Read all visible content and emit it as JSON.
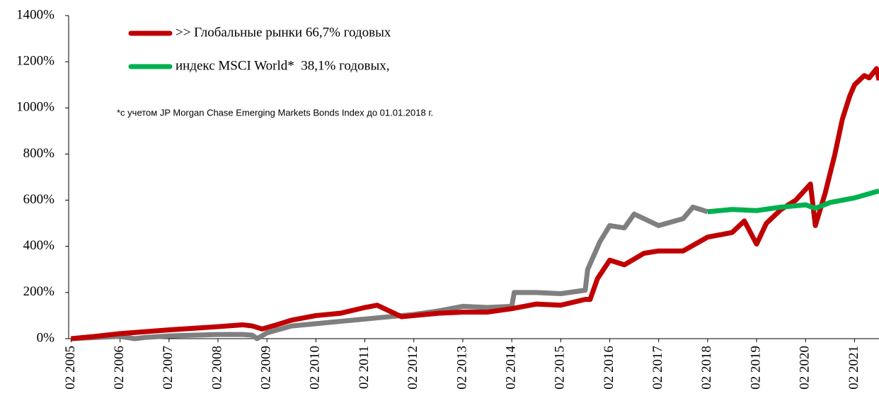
{
  "chart_data": {
    "type": "line",
    "annotation": "*с учетом JP Morgan Chase Emerging Markets Bonds Index до 01.01.2018 г.",
    "xlim": [
      2004.95,
      2021.5
    ],
    "xticks": [
      {
        "value": 2005,
        "label": "02 2005"
      },
      {
        "value": 2006,
        "label": "02 2006"
      },
      {
        "value": 2007,
        "label": "02 2007"
      },
      {
        "value": 2008,
        "label": "02 2008"
      },
      {
        "value": 2009,
        "label": "02 2009"
      },
      {
        "value": 2010,
        "label": "02 2010"
      },
      {
        "value": 2011,
        "label": "02 2011"
      },
      {
        "value": 2012,
        "label": "02 2012"
      },
      {
        "value": 2013,
        "label": "02 2013"
      },
      {
        "value": 2014,
        "label": "02 2014"
      },
      {
        "value": 2015,
        "label": "02 2015"
      },
      {
        "value": 2016,
        "label": "02 2016"
      },
      {
        "value": 2017,
        "label": "02 2017"
      },
      {
        "value": 2018,
        "label": "02 2018"
      },
      {
        "value": 2019,
        "label": "02 2019"
      },
      {
        "value": 2020,
        "label": "02 2020"
      },
      {
        "value": 2021,
        "label": "02 2021"
      }
    ],
    "ylim": [
      0,
      1400
    ],
    "yticks": [
      {
        "value": 0,
        "label": "0%"
      },
      {
        "value": 200,
        "label": "200%"
      },
      {
        "value": 400,
        "label": "400%"
      },
      {
        "value": 600,
        "label": "600%"
      },
      {
        "value": 800,
        "label": "800%"
      },
      {
        "value": 1000,
        "label": "1000%"
      },
      {
        "value": 1200,
        "label": "1200%"
      },
      {
        "value": 1400,
        "label": "1400%"
      }
    ],
    "series": [
      {
        "color": "#7f7f7f",
        "x": [
          2005,
          2005.5,
          2006,
          2006.3,
          2006.5,
          2007,
          2007.5,
          2008,
          2008.5,
          2008.7,
          2008.8,
          2009,
          2009.5,
          2010,
          2010.5,
          2011,
          2011.5,
          2012,
          2012.5,
          2013,
          2013.5,
          2014,
          2014.05,
          2014.5,
          2015,
          2015.5,
          2015.55,
          2015.8,
          2016,
          2016.3,
          2016.5,
          2017,
          2017.5,
          2017.7,
          2018
        ],
        "values": [
          0,
          5,
          10,
          0,
          5,
          12,
          15,
          18,
          18,
          15,
          0,
          25,
          55,
          65,
          75,
          85,
          95,
          105,
          120,
          140,
          135,
          140,
          200,
          200,
          195,
          210,
          300,
          420,
          490,
          480,
          540,
          490,
          520,
          570,
          550
        ]
      },
      {
        "name": ">> Глобальные рынки 66,7% годовых",
        "color": "#c00000",
        "x": [
          2005,
          2005.5,
          2006,
          2006.5,
          2007,
          2007.5,
          2008,
          2008.5,
          2008.7,
          2008.9,
          2009.2,
          2009.5,
          2010,
          2010.5,
          2011,
          2011.25,
          2011.5,
          2011.75,
          2012,
          2012.5,
          2013,
          2013.5,
          2014,
          2014.5,
          2015,
          2015.5,
          2015.6,
          2015.75,
          2016,
          2016.3,
          2016.7,
          2017,
          2017.5,
          2018,
          2018.5,
          2018.75,
          2019,
          2019.2,
          2019.5,
          2019.8,
          2020.1,
          2020.2,
          2020.4,
          2020.6,
          2020.75,
          2020.9,
          2021,
          2021.2,
          2021.3,
          2021.45,
          2021.5
        ],
        "values": [
          0,
          10,
          22,
          30,
          38,
          45,
          52,
          60,
          55,
          42,
          60,
          80,
          100,
          110,
          135,
          145,
          120,
          95,
          100,
          110,
          115,
          115,
          130,
          150,
          145,
          170,
          170,
          260,
          340,
          320,
          370,
          380,
          380,
          440,
          460,
          510,
          410,
          500,
          560,
          600,
          670,
          490,
          630,
          800,
          950,
          1050,
          1100,
          1140,
          1130,
          1170,
          1120
        ]
      },
      {
        "name": "индекс MSCI World*  38,1% годовых,",
        "color": "#00b050",
        "x": [
          2018,
          2018.5,
          2019,
          2019.5,
          2020,
          2020.2,
          2020.5,
          2021,
          2021.5
        ],
        "values": [
          550,
          560,
          555,
          570,
          580,
          565,
          590,
          610,
          640
        ]
      }
    ]
  }
}
